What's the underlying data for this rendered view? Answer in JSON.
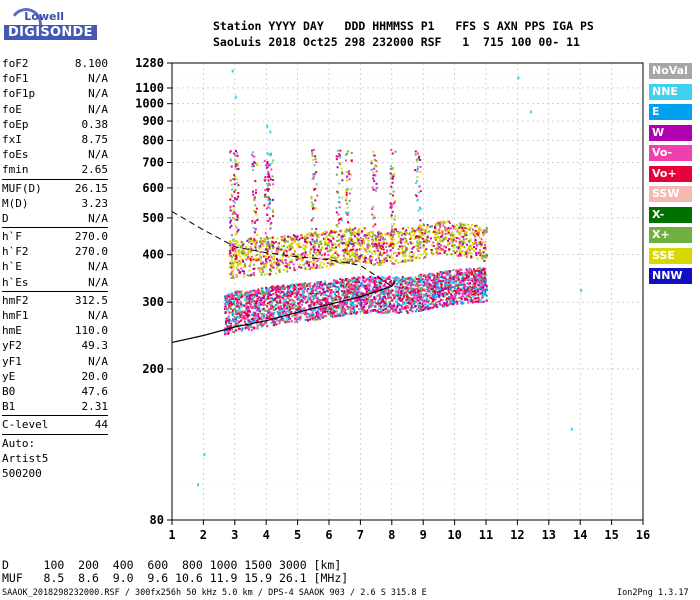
{
  "logo": {
    "line1": "Lowell",
    "line2": "DIGISONDE"
  },
  "header": {
    "line1": "Station YYYY DAY   DDD HHMMSS P1   FFS S AXN PPS IGA PS",
    "line2": "SaoLuis 2018 Oct25 298 232000 RSF   1  715 100 00- 11"
  },
  "params": {
    "group1": [
      {
        "name": "foF2",
        "value": "8.100"
      },
      {
        "name": "foF1",
        "value": "N/A"
      },
      {
        "name": "foF1p",
        "value": "N/A"
      },
      {
        "name": "foE",
        "value": "N/A"
      },
      {
        "name": "foEp",
        "value": "0.38"
      },
      {
        "name": "fxI",
        "value": "8.75"
      },
      {
        "name": "foEs",
        "value": "N/A"
      },
      {
        "name": "fmin",
        "value": "2.65"
      }
    ],
    "group2": [
      {
        "name": "MUF(D)",
        "value": "26.15"
      },
      {
        "name": "M(D)",
        "value": "3.23"
      },
      {
        "name": "D",
        "value": "N/A"
      }
    ],
    "group3": [
      {
        "name": "h`F",
        "value": "270.0"
      },
      {
        "name": "h`F2",
        "value": "270.0"
      },
      {
        "name": "h`E",
        "value": "N/A"
      },
      {
        "name": "h`Es",
        "value": "N/A"
      }
    ],
    "group4": [
      {
        "name": "hmF2",
        "value": "312.5"
      },
      {
        "name": "hmF1",
        "value": "N/A"
      },
      {
        "name": "hmE",
        "value": "110.0"
      },
      {
        "name": "yF2",
        "value": "49.3"
      },
      {
        "name": "yF1",
        "value": "N/A"
      },
      {
        "name": "yE",
        "value": "20.0"
      },
      {
        "name": "B0",
        "value": "47.6"
      },
      {
        "name": "B1",
        "value": "2.31"
      }
    ],
    "group5": [
      {
        "name": "C-level",
        "value": "44"
      }
    ],
    "autoscale": [
      "Auto:",
      "Artist5",
      "500200"
    ]
  },
  "dmuf": {
    "d_row": "D     100  200  400  600  800 1000 1500 3000 [km]",
    "muf_row": "MUF   8.5  8.6  9.0  9.6 10.6 11.9 15.9 26.1 [MHz]"
  },
  "footer": {
    "left": "SAAOK_2018298232000.RSF / 300fx256h 50 kHz 5.0 km / DPS-4 SAAOK 903 / 2.6 S 315.8 E",
    "right": "Ion2Png 1.3.17"
  },
  "legend": [
    {
      "label": "NoVal",
      "color": "#a6a6a6"
    },
    {
      "label": "NNE",
      "color": "#40d0f0"
    },
    {
      "label": "E",
      "color": "#00a0f0"
    },
    {
      "label": "W",
      "color": "#b000b0"
    },
    {
      "label": "Vo-",
      "color": "#f040b0"
    },
    {
      "label": "Vo+",
      "color": "#e8003a"
    },
    {
      "label": "SSW",
      "color": "#f4b8b0"
    },
    {
      "label": "X-",
      "color": "#007000"
    },
    {
      "label": "X+",
      "color": "#70b040"
    },
    {
      "label": "SSE",
      "color": "#d8d800"
    },
    {
      "label": "NNW",
      "color": "#1010c0"
    }
  ],
  "chart_data": {
    "type": "scatter",
    "title": "",
    "xlabel": "",
    "ylabel": "",
    "xlim": [
      1,
      16
    ],
    "ylim": [
      80,
      1280
    ],
    "xticks": [
      1,
      2,
      3,
      4,
      5,
      6,
      7,
      8,
      9,
      10,
      11,
      12,
      13,
      14,
      15,
      16
    ],
    "yticks": [
      80,
      200,
      300,
      400,
      500,
      600,
      700,
      800,
      900,
      1000,
      1100,
      1280
    ],
    "y_scale": "log",
    "grid": true,
    "series": [
      {
        "name": "F2 trace (lower)",
        "color": "#e8003a",
        "x": [
          2.65,
          3,
          3.5,
          4,
          4.5,
          5,
          5.5,
          6,
          6.5,
          7,
          7.5,
          8,
          8.5,
          9,
          9.5,
          10,
          10.5,
          11
        ],
        "y": [
          265,
          270,
          272,
          278,
          282,
          285,
          288,
          292,
          296,
          300,
          300,
          300,
          300,
          305,
          310,
          315,
          318,
          320
        ]
      },
      {
        "name": "F2 trace (upper)",
        "color": "#d8d800",
        "x": [
          2.8,
          3.5,
          4,
          4.5,
          5,
          5.5,
          6,
          6.5,
          7,
          7.5,
          8,
          8.5,
          9,
          9.5,
          10,
          10.5,
          11
        ],
        "y": [
          390,
          400,
          400,
          405,
          410,
          415,
          420,
          425,
          430,
          420,
          425,
          430,
          440,
          450,
          445,
          440,
          430
        ]
      },
      {
        "name": "model profile",
        "color": "#000000",
        "x": [
          1,
          2,
          3,
          4,
          5,
          6,
          7,
          8,
          8.1
        ],
        "y": [
          235,
          245,
          258,
          268,
          282,
          296,
          310,
          330,
          340
        ]
      },
      {
        "name": "dashed extrapolation",
        "color": "#000000",
        "x": [
          1,
          2,
          3,
          4,
          5,
          6,
          7,
          8
        ],
        "y": [
          520,
          465,
          420,
          405,
          395,
          388,
          375,
          330
        ]
      },
      {
        "name": "sparse echoes",
        "color": "#40d0f0",
        "x": [
          1.8,
          2.9,
          3.0,
          4.0,
          4.1,
          12.0,
          12.4,
          13.7,
          2.0,
          14.0
        ],
        "y": [
          100,
          1230,
          1050,
          880,
          850,
          1180,
          960,
          140,
          120,
          325
        ]
      }
    ]
  }
}
